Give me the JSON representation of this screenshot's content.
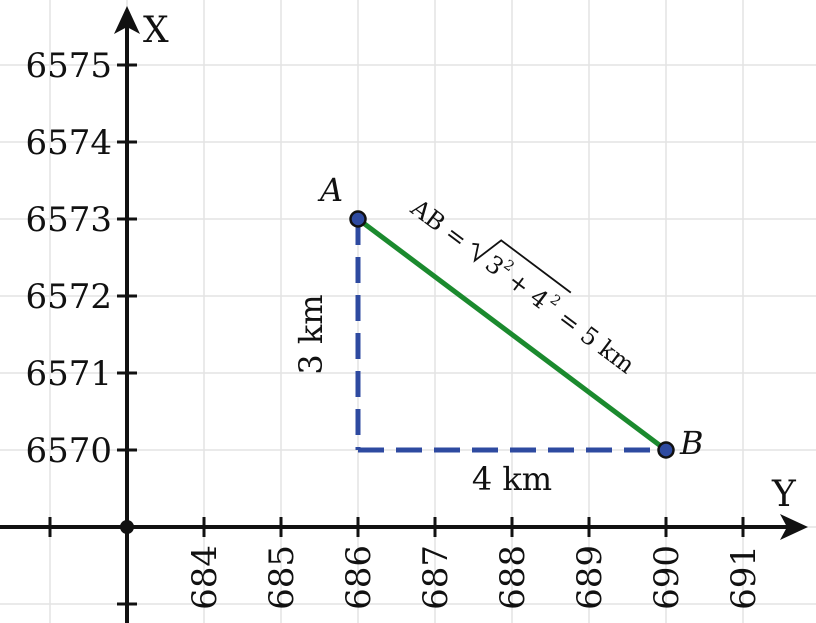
{
  "chart_data": {
    "type": "scatter",
    "x_axis_label": "Y",
    "y_axis_label": "X",
    "x_ticks": [
      684,
      685,
      686,
      687,
      688,
      689,
      690,
      691
    ],
    "y_ticks": [
      6570,
      6571,
      6572,
      6573,
      6574,
      6575
    ],
    "grid": true,
    "points": [
      {
        "label": "A",
        "x": 686,
        "y": 6573
      },
      {
        "label": "B",
        "x": 690,
        "y": 6570
      }
    ],
    "segment_AB": {
      "from": "A",
      "to": "B",
      "color": "#1b8a2e"
    },
    "right_angle_corner": {
      "x": 686,
      "y": 6570
    },
    "dashed_color": "#2e4aa0",
    "vertical_leg_label": "3 km",
    "horizontal_leg_label": "4 km",
    "hypotenuse_formula": {
      "lhs": "AB =",
      "radicand_terms": [
        "3",
        "+ 4"
      ],
      "exponent": "2",
      "rhs": "= 5 km"
    }
  }
}
